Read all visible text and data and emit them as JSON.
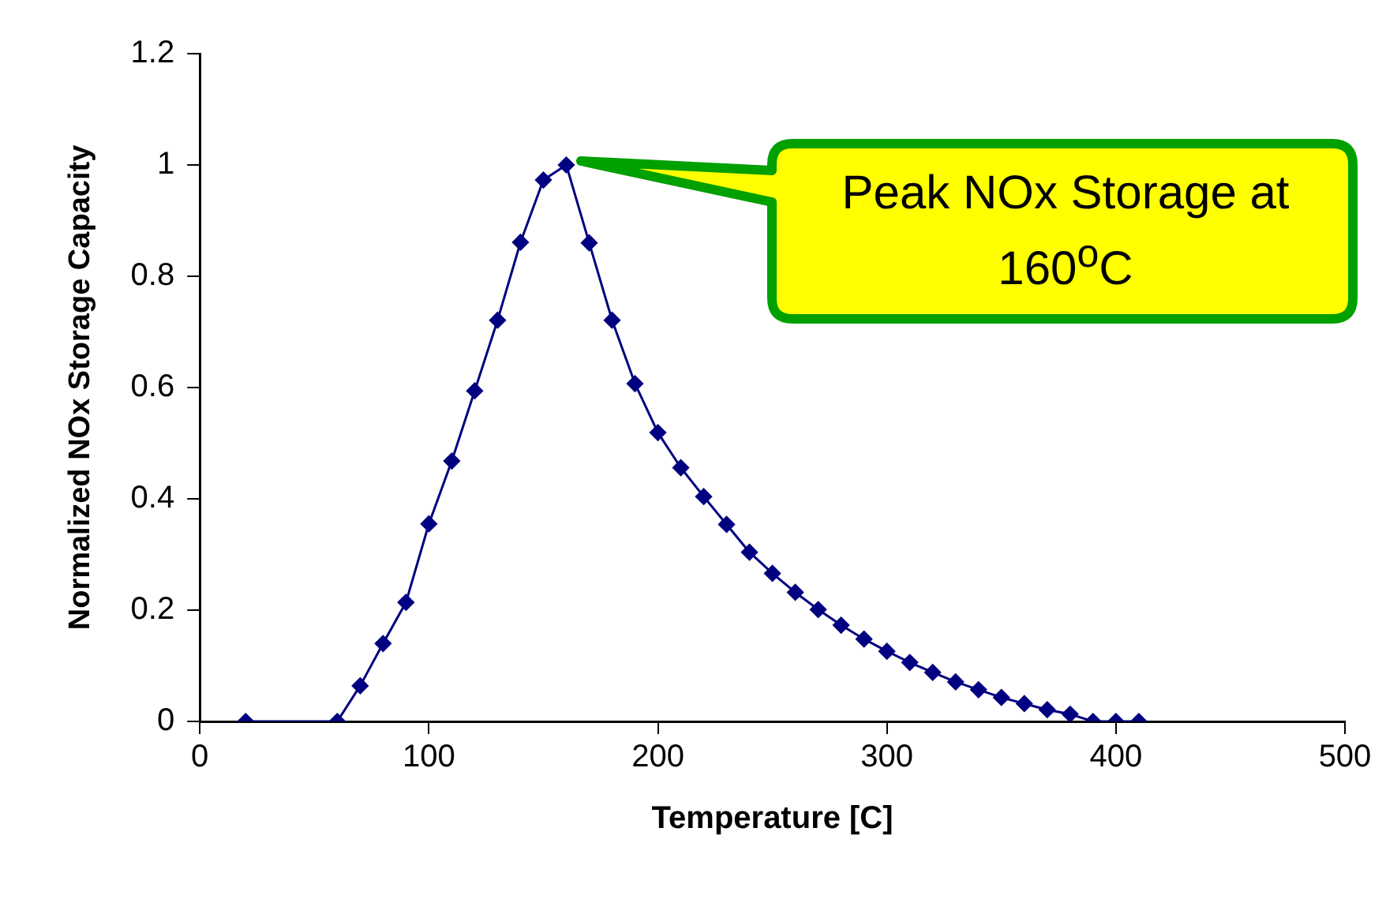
{
  "chart_data": {
    "type": "line",
    "xlabel": "Temperature [C]",
    "ylabel": "Normalized NOx Storage Capacity",
    "x": [
      20,
      60,
      70,
      80,
      90,
      100,
      110,
      120,
      130,
      140,
      150,
      160,
      170,
      180,
      190,
      200,
      210,
      220,
      230,
      240,
      250,
      260,
      270,
      280,
      290,
      300,
      310,
      320,
      330,
      340,
      350,
      360,
      370,
      380,
      390,
      400,
      410
    ],
    "series": [
      {
        "color": "#000080",
        "values": [
          0,
          0,
          0.064,
          0.14,
          0.214,
          0.355,
          0.468,
          0.594,
          0.721,
          0.861,
          0.973,
          1.0,
          0.86,
          0.721,
          0.607,
          0.519,
          0.456,
          0.404,
          0.354,
          0.304,
          0.266,
          0.232,
          0.201,
          0.173,
          0.148,
          0.126,
          0.106,
          0.088,
          0.071,
          0.057,
          0.043,
          0.032,
          0.021,
          0.013,
          0,
          0,
          0
        ]
      }
    ],
    "xlim": [
      0,
      500
    ],
    "xticks": [
      0,
      100,
      200,
      300,
      400,
      500
    ],
    "ylim": [
      0,
      1.2
    ],
    "yticks": [
      0,
      0.2,
      0.4,
      0.6,
      0.8,
      1,
      1.2
    ],
    "marker": "diamond",
    "line_style": "solid",
    "grid": false,
    "legend": false,
    "annotations": [
      "Peak NOx Storage at 160$^{o}$C"
    ]
  }
}
